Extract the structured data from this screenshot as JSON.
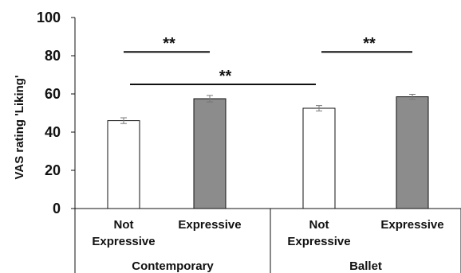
{
  "chart_data": {
    "type": "bar",
    "ylabel": "VAS rating 'Liking'",
    "ylim": [
      0,
      100
    ],
    "yticks": [
      0,
      20,
      40,
      60,
      80,
      100
    ],
    "groups": [
      {
        "name": "Contemporary",
        "categories": [
          "Not Expressive",
          "Expressive"
        ],
        "values": [
          46,
          57.5
        ],
        "errors": [
          1.5,
          1.7
        ],
        "colors": [
          "#ffffff",
          "#8c8c8c"
        ]
      },
      {
        "name": "Ballet",
        "categories": [
          "Not Expressive",
          "Expressive"
        ],
        "values": [
          52.5,
          58.5
        ],
        "errors": [
          1.4,
          1.3
        ],
        "colors": [
          "#ffffff",
          "#8c8c8c"
        ]
      }
    ],
    "significance": [
      {
        "label": "**",
        "from": 0,
        "to": 1,
        "y": 82
      },
      {
        "label": "**",
        "from": 2,
        "to": 3,
        "y": 82
      },
      {
        "label": "**",
        "from": 0,
        "to": 2,
        "y": 65
      }
    ],
    "grid": false,
    "legend": "none"
  }
}
